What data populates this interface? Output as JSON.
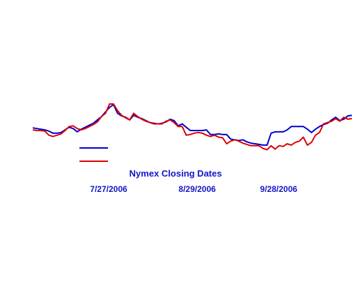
{
  "chart_data": {
    "type": "line",
    "title": "",
    "xlabel": "Nymex Closing Dates",
    "ylabel": "",
    "x_tick_labels": [
      "7/27/2006",
      "8/29/2006",
      "9/28/2006"
    ],
    "x_index_range": [
      0,
      79
    ],
    "ylim": [
      0,
      100
    ],
    "grid": false,
    "legend": "lower-left",
    "series": [
      {
        "name": "",
        "color": "#0000cc",
        "values": [
          44,
          43,
          42,
          41,
          39,
          36,
          36,
          37,
          41,
          45,
          43,
          38,
          42,
          45,
          48,
          51,
          56,
          61,
          68,
          75,
          79,
          66,
          62,
          60,
          56,
          63,
          60,
          58,
          55,
          52,
          51,
          50,
          51,
          53,
          57,
          55,
          47,
          50,
          45,
          40,
          40,
          40,
          40,
          41,
          34,
          34,
          35,
          34,
          34,
          27,
          26,
          25,
          26,
          23,
          21,
          20,
          19,
          18,
          18,
          36,
          38,
          38,
          38,
          41,
          46,
          46,
          46,
          46,
          42,
          37,
          42,
          46,
          49,
          51,
          56,
          60,
          55,
          57,
          62,
          63
        ]
      },
      {
        "name": "",
        "color": "#dd0000",
        "values": [
          41,
          40,
          40,
          39,
          33,
          31,
          33,
          35,
          40,
          46,
          47,
          43,
          41,
          43,
          46,
          49,
          53,
          61,
          66,
          80,
          80,
          70,
          63,
          59,
          56,
          66,
          61,
          57,
          54,
          52,
          50,
          50,
          50,
          54,
          56,
          52,
          46,
          46,
          33,
          34,
          36,
          37,
          36,
          33,
          31,
          33,
          30,
          29,
          20,
          24,
          26,
          24,
          21,
          19,
          17,
          17,
          17,
          13,
          11,
          17,
          12,
          17,
          16,
          20,
          18,
          22,
          24,
          30,
          18,
          22,
          33,
          37,
          50,
          52,
          54,
          58,
          54,
          60,
          57,
          58
        ]
      }
    ]
  }
}
